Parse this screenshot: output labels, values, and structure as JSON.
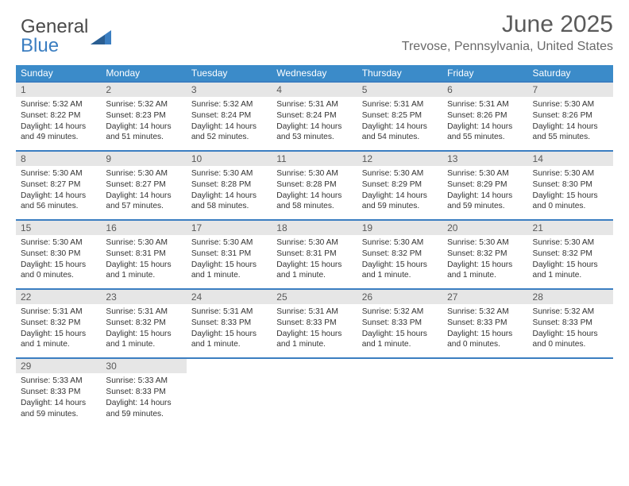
{
  "logo": {
    "word1": "General",
    "word2": "Blue"
  },
  "title": "June 2025",
  "location": "Trevose, Pennsylvania, United States",
  "colors": {
    "header_bg": "#3b8bc9",
    "border": "#3b7ec1",
    "daynum_bg": "#e6e6e6",
    "text_dark": "#333333",
    "text_gray": "#5a5a5a"
  },
  "daysOfWeek": [
    "Sunday",
    "Monday",
    "Tuesday",
    "Wednesday",
    "Thursday",
    "Friday",
    "Saturday"
  ],
  "weeks": [
    [
      {
        "n": "1",
        "sr": "5:32 AM",
        "ss": "8:22 PM",
        "dl": "14 hours and 49 minutes."
      },
      {
        "n": "2",
        "sr": "5:32 AM",
        "ss": "8:23 PM",
        "dl": "14 hours and 51 minutes."
      },
      {
        "n": "3",
        "sr": "5:32 AM",
        "ss": "8:24 PM",
        "dl": "14 hours and 52 minutes."
      },
      {
        "n": "4",
        "sr": "5:31 AM",
        "ss": "8:24 PM",
        "dl": "14 hours and 53 minutes."
      },
      {
        "n": "5",
        "sr": "5:31 AM",
        "ss": "8:25 PM",
        "dl": "14 hours and 54 minutes."
      },
      {
        "n": "6",
        "sr": "5:31 AM",
        "ss": "8:26 PM",
        "dl": "14 hours and 55 minutes."
      },
      {
        "n": "7",
        "sr": "5:30 AM",
        "ss": "8:26 PM",
        "dl": "14 hours and 55 minutes."
      }
    ],
    [
      {
        "n": "8",
        "sr": "5:30 AM",
        "ss": "8:27 PM",
        "dl": "14 hours and 56 minutes."
      },
      {
        "n": "9",
        "sr": "5:30 AM",
        "ss": "8:27 PM",
        "dl": "14 hours and 57 minutes."
      },
      {
        "n": "10",
        "sr": "5:30 AM",
        "ss": "8:28 PM",
        "dl": "14 hours and 58 minutes."
      },
      {
        "n": "11",
        "sr": "5:30 AM",
        "ss": "8:28 PM",
        "dl": "14 hours and 58 minutes."
      },
      {
        "n": "12",
        "sr": "5:30 AM",
        "ss": "8:29 PM",
        "dl": "14 hours and 59 minutes."
      },
      {
        "n": "13",
        "sr": "5:30 AM",
        "ss": "8:29 PM",
        "dl": "14 hours and 59 minutes."
      },
      {
        "n": "14",
        "sr": "5:30 AM",
        "ss": "8:30 PM",
        "dl": "15 hours and 0 minutes."
      }
    ],
    [
      {
        "n": "15",
        "sr": "5:30 AM",
        "ss": "8:30 PM",
        "dl": "15 hours and 0 minutes."
      },
      {
        "n": "16",
        "sr": "5:30 AM",
        "ss": "8:31 PM",
        "dl": "15 hours and 1 minute."
      },
      {
        "n": "17",
        "sr": "5:30 AM",
        "ss": "8:31 PM",
        "dl": "15 hours and 1 minute."
      },
      {
        "n": "18",
        "sr": "5:30 AM",
        "ss": "8:31 PM",
        "dl": "15 hours and 1 minute."
      },
      {
        "n": "19",
        "sr": "5:30 AM",
        "ss": "8:32 PM",
        "dl": "15 hours and 1 minute."
      },
      {
        "n": "20",
        "sr": "5:30 AM",
        "ss": "8:32 PM",
        "dl": "15 hours and 1 minute."
      },
      {
        "n": "21",
        "sr": "5:30 AM",
        "ss": "8:32 PM",
        "dl": "15 hours and 1 minute."
      }
    ],
    [
      {
        "n": "22",
        "sr": "5:31 AM",
        "ss": "8:32 PM",
        "dl": "15 hours and 1 minute."
      },
      {
        "n": "23",
        "sr": "5:31 AM",
        "ss": "8:32 PM",
        "dl": "15 hours and 1 minute."
      },
      {
        "n": "24",
        "sr": "5:31 AM",
        "ss": "8:33 PM",
        "dl": "15 hours and 1 minute."
      },
      {
        "n": "25",
        "sr": "5:31 AM",
        "ss": "8:33 PM",
        "dl": "15 hours and 1 minute."
      },
      {
        "n": "26",
        "sr": "5:32 AM",
        "ss": "8:33 PM",
        "dl": "15 hours and 1 minute."
      },
      {
        "n": "27",
        "sr": "5:32 AM",
        "ss": "8:33 PM",
        "dl": "15 hours and 0 minutes."
      },
      {
        "n": "28",
        "sr": "5:32 AM",
        "ss": "8:33 PM",
        "dl": "15 hours and 0 minutes."
      }
    ],
    [
      {
        "n": "29",
        "sr": "5:33 AM",
        "ss": "8:33 PM",
        "dl": "14 hours and 59 minutes."
      },
      {
        "n": "30",
        "sr": "5:33 AM",
        "ss": "8:33 PM",
        "dl": "14 hours and 59 minutes."
      },
      null,
      null,
      null,
      null,
      null
    ]
  ],
  "labels": {
    "sunrise": "Sunrise: ",
    "sunset": "Sunset: ",
    "daylight": "Daylight: "
  }
}
